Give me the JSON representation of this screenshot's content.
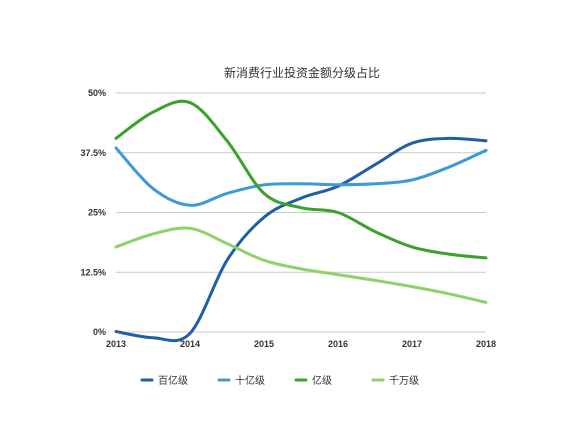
{
  "chart_data": {
    "type": "line",
    "title": "新消费行业投资金额分级占比",
    "xlabel": "",
    "ylabel": "",
    "x": [
      2013,
      2014,
      2015,
      2016,
      2017,
      2018
    ],
    "x_tick_labels": [
      "2013",
      "2014",
      "2015",
      "2016",
      "2017",
      "2018"
    ],
    "ylim": [
      0,
      50
    ],
    "y_ticks": [
      0,
      12.5,
      25,
      37.5,
      50
    ],
    "y_tick_labels": [
      "0%",
      "12.5%",
      "25%",
      "37.5%",
      "50%"
    ],
    "grid": true,
    "legend_position": "bottom",
    "series": [
      {
        "name": "百亿级",
        "color": "#1f5fa3",
        "points": [
          [
            2013,
            0.1
          ],
          [
            2013.5,
            -1.2
          ],
          [
            2014,
            -0.3
          ],
          [
            2014.5,
            15
          ],
          [
            2015,
            24
          ],
          [
            2015.5,
            28
          ],
          [
            2016,
            30.5
          ],
          [
            2016.5,
            35
          ],
          [
            2017,
            39.5
          ],
          [
            2017.5,
            40.5
          ],
          [
            2018,
            40
          ]
        ]
      },
      {
        "name": "十亿级",
        "color": "#3d9ad6",
        "points": [
          [
            2013,
            38.5
          ],
          [
            2013.5,
            30
          ],
          [
            2014,
            26.5
          ],
          [
            2014.5,
            29
          ],
          [
            2015,
            30.8
          ],
          [
            2015.5,
            31
          ],
          [
            2016,
            30.8
          ],
          [
            2016.5,
            31
          ],
          [
            2017,
            31.8
          ],
          [
            2017.5,
            34.5
          ],
          [
            2018,
            38
          ]
        ]
      },
      {
        "name": "亿级",
        "color": "#3aa12a",
        "points": [
          [
            2013,
            40.5
          ],
          [
            2013.5,
            46
          ],
          [
            2014,
            48
          ],
          [
            2014.5,
            40
          ],
          [
            2015,
            29
          ],
          [
            2015.5,
            26
          ],
          [
            2016,
            25
          ],
          [
            2016.5,
            21
          ],
          [
            2017,
            17.8
          ],
          [
            2017.5,
            16.3
          ],
          [
            2018,
            15.5
          ]
        ]
      },
      {
        "name": "千万级",
        "color": "#8fd16a",
        "points": [
          [
            2013,
            17.8
          ],
          [
            2013.5,
            20.5
          ],
          [
            2014,
            21.7
          ],
          [
            2014.5,
            18.5
          ],
          [
            2015,
            15
          ],
          [
            2015.5,
            13.2
          ],
          [
            2016,
            12
          ],
          [
            2016.5,
            10.8
          ],
          [
            2017,
            9.5
          ],
          [
            2017.5,
            8
          ],
          [
            2018,
            6.2
          ]
        ]
      }
    ]
  }
}
